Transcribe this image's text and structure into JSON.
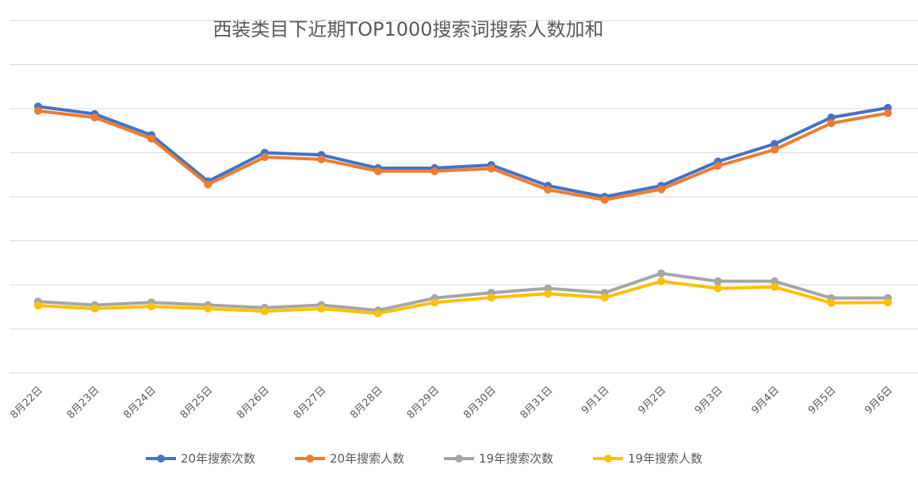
{
  "chart_data": {
    "type": "line",
    "title": "西装类目下近期TOP1000搜索词搜索人数加和",
    "xlabel": "",
    "ylabel": "",
    "y_tick_labels_shown": false,
    "grid": "horizontal",
    "legend_position": "bottom",
    "ylim": [
      0,
      8
    ],
    "categories": [
      "8月22日",
      "8月23日",
      "8月24日",
      "8月25日",
      "8月26日",
      "8月27日",
      "8月28日",
      "8月29日",
      "8月30日",
      "8月31日",
      "9月1日",
      "9月2日",
      "9月3日",
      "9月4日",
      "9月5日",
      "9月6日"
    ],
    "series": [
      {
        "name": "20年搜索次数",
        "color": "#4472C4",
        "values": [
          6.05,
          5.88,
          5.4,
          4.35,
          5.0,
          4.95,
          4.65,
          4.65,
          4.72,
          4.25,
          4.0,
          4.25,
          4.8,
          5.2,
          5.8,
          6.02
        ]
      },
      {
        "name": "20年搜索人数",
        "color": "#ED7D31",
        "values": [
          5.95,
          5.8,
          5.32,
          4.28,
          4.9,
          4.85,
          4.58,
          4.58,
          4.64,
          4.16,
          3.93,
          4.17,
          4.7,
          5.07,
          5.67,
          5.9
        ]
      },
      {
        "name": "19年搜索次数",
        "color": "#A5A5A5",
        "values": [
          1.62,
          1.54,
          1.6,
          1.54,
          1.48,
          1.54,
          1.42,
          1.7,
          1.82,
          1.92,
          1.82,
          2.26,
          2.08,
          2.08,
          1.7,
          1.7
        ]
      },
      {
        "name": "19年搜索人数",
        "color": "#FFC000",
        "values": [
          1.53,
          1.46,
          1.51,
          1.46,
          1.4,
          1.46,
          1.35,
          1.6,
          1.71,
          1.8,
          1.71,
          2.08,
          1.92,
          1.95,
          1.59,
          1.6
        ]
      }
    ]
  }
}
